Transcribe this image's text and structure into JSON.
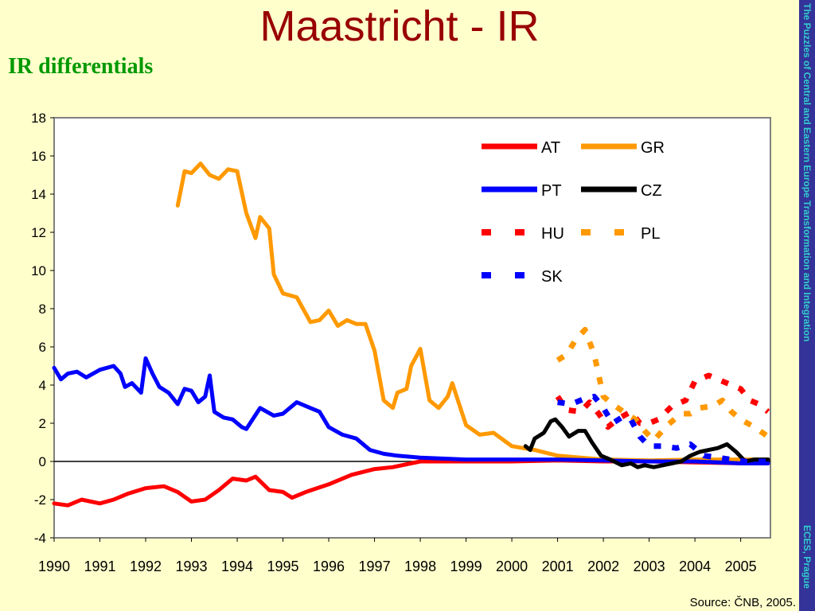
{
  "slide": {
    "title": "Maastricht - IR",
    "subtitle": "IR differentials",
    "side_text_top": "The Puzzles of Central and Eastern Europe Transformation and Integration",
    "side_text_bottom": "ECES, Prague",
    "source": "Source: ČNB, 2005."
  },
  "chart_data": {
    "type": "line",
    "title": "",
    "xlabel": "",
    "ylabel": "",
    "xlim": [
      1990,
      2005.65
    ],
    "ylim": [
      -4,
      18
    ],
    "x_ticks": [
      "1990",
      "1991",
      "1992",
      "1993",
      "1994",
      "1995",
      "1996",
      "1997",
      "1998",
      "1999",
      "2000",
      "2001",
      "2002",
      "2003",
      "2004",
      "2005"
    ],
    "y_ticks": [
      "18",
      "16",
      "14",
      "12",
      "10",
      "8",
      "6",
      "4",
      "2",
      "0",
      "-2",
      "-4"
    ],
    "legend_position": "top-right",
    "series": [
      {
        "name": "AT",
        "color": "#ff0000",
        "style": "solid",
        "points": [
          [
            1990,
            -2.2
          ],
          [
            1990.3,
            -2.3
          ],
          [
            1990.6,
            -2.0
          ],
          [
            1991,
            -2.2
          ],
          [
            1991.3,
            -2.0
          ],
          [
            1991.6,
            -1.7
          ],
          [
            1992,
            -1.4
          ],
          [
            1992.4,
            -1.3
          ],
          [
            1992.7,
            -1.6
          ],
          [
            1993,
            -2.1
          ],
          [
            1993.3,
            -2.0
          ],
          [
            1993.6,
            -1.5
          ],
          [
            1993.9,
            -0.9
          ],
          [
            1994.2,
            -1.0
          ],
          [
            1994.4,
            -0.8
          ],
          [
            1994.7,
            -1.5
          ],
          [
            1995,
            -1.6
          ],
          [
            1995.2,
            -1.9
          ],
          [
            1995.5,
            -1.6
          ],
          [
            1996,
            -1.2
          ],
          [
            1996.5,
            -0.7
          ],
          [
            1997,
            -0.4
          ],
          [
            1997.4,
            -0.3
          ],
          [
            1997.8,
            -0.1
          ],
          [
            1998,
            0.0
          ],
          [
            1998.5,
            0.0
          ],
          [
            1999,
            0.0
          ],
          [
            2000,
            0.0
          ],
          [
            2001,
            0.05
          ],
          [
            2002,
            0.0
          ],
          [
            2003,
            0.0
          ],
          [
            2004,
            -0.05
          ],
          [
            2005,
            -0.1
          ],
          [
            2005.6,
            -0.1
          ]
        ]
      },
      {
        "name": "GR",
        "color": "#ff9900",
        "style": "solid",
        "points": [
          [
            1992.7,
            13.4
          ],
          [
            1992.85,
            15.2
          ],
          [
            1993,
            15.1
          ],
          [
            1993.2,
            15.6
          ],
          [
            1993.4,
            15.0
          ],
          [
            1993.6,
            14.8
          ],
          [
            1993.8,
            15.3
          ],
          [
            1994,
            15.2
          ],
          [
            1994.2,
            13.0
          ],
          [
            1994.4,
            11.7
          ],
          [
            1994.5,
            12.8
          ],
          [
            1994.7,
            12.2
          ],
          [
            1994.8,
            9.8
          ],
          [
            1995,
            8.8
          ],
          [
            1995.3,
            8.6
          ],
          [
            1995.6,
            7.3
          ],
          [
            1995.8,
            7.4
          ],
          [
            1996,
            7.9
          ],
          [
            1996.2,
            7.1
          ],
          [
            1996.4,
            7.4
          ],
          [
            1996.6,
            7.2
          ],
          [
            1996.8,
            7.2
          ],
          [
            1997,
            5.8
          ],
          [
            1997.2,
            3.2
          ],
          [
            1997.4,
            2.8
          ],
          [
            1997.5,
            3.6
          ],
          [
            1997.7,
            3.8
          ],
          [
            1997.8,
            5.0
          ],
          [
            1998,
            5.9
          ],
          [
            1998.2,
            3.2
          ],
          [
            1998.4,
            2.8
          ],
          [
            1998.6,
            3.4
          ],
          [
            1998.7,
            4.1
          ],
          [
            1998.85,
            3.0
          ],
          [
            1999,
            1.9
          ],
          [
            1999.3,
            1.4
          ],
          [
            1999.6,
            1.5
          ],
          [
            2000,
            0.8
          ],
          [
            2000.5,
            0.6
          ],
          [
            2001,
            0.3
          ],
          [
            2001.5,
            0.2
          ],
          [
            2002,
            0.1
          ],
          [
            2003,
            0.05
          ],
          [
            2004,
            0.1
          ],
          [
            2005,
            0.1
          ],
          [
            2005.6,
            0.1
          ]
        ]
      },
      {
        "name": "PT",
        "color": "#0000ff",
        "style": "solid",
        "points": [
          [
            1990,
            4.9
          ],
          [
            1990.15,
            4.3
          ],
          [
            1990.3,
            4.6
          ],
          [
            1990.5,
            4.7
          ],
          [
            1990.7,
            4.4
          ],
          [
            1991,
            4.8
          ],
          [
            1991.3,
            5.0
          ],
          [
            1991.45,
            4.6
          ],
          [
            1991.55,
            3.9
          ],
          [
            1991.7,
            4.1
          ],
          [
            1991.9,
            3.6
          ],
          [
            1992,
            5.4
          ],
          [
            1992.15,
            4.6
          ],
          [
            1992.3,
            3.9
          ],
          [
            1992.5,
            3.6
          ],
          [
            1992.7,
            3.0
          ],
          [
            1992.85,
            3.8
          ],
          [
            1993,
            3.7
          ],
          [
            1993.15,
            3.1
          ],
          [
            1993.3,
            3.4
          ],
          [
            1993.4,
            4.5
          ],
          [
            1993.5,
            2.6
          ],
          [
            1993.7,
            2.3
          ],
          [
            1993.9,
            2.2
          ],
          [
            1994.1,
            1.8
          ],
          [
            1994.2,
            1.7
          ],
          [
            1994.5,
            2.8
          ],
          [
            1994.8,
            2.4
          ],
          [
            1995,
            2.5
          ],
          [
            1995.3,
            3.1
          ],
          [
            1995.6,
            2.8
          ],
          [
            1995.8,
            2.6
          ],
          [
            1996,
            1.8
          ],
          [
            1996.3,
            1.4
          ],
          [
            1996.6,
            1.2
          ],
          [
            1996.9,
            0.6
          ],
          [
            1997.2,
            0.4
          ],
          [
            1997.5,
            0.3
          ],
          [
            1998,
            0.2
          ],
          [
            1999,
            0.1
          ],
          [
            2000,
            0.1
          ],
          [
            2001,
            0.1
          ],
          [
            2002,
            0.05
          ],
          [
            2003,
            0.0
          ],
          [
            2004,
            0.0
          ],
          [
            2005,
            -0.1
          ],
          [
            2005.6,
            -0.1
          ]
        ]
      },
      {
        "name": "CZ",
        "color": "#000000",
        "style": "solid",
        "points": [
          [
            2000.3,
            0.8
          ],
          [
            2000.4,
            0.6
          ],
          [
            2000.5,
            1.2
          ],
          [
            2000.7,
            1.5
          ],
          [
            2000.85,
            2.1
          ],
          [
            2000.95,
            2.2
          ],
          [
            2001.1,
            1.8
          ],
          [
            2001.25,
            1.3
          ],
          [
            2001.45,
            1.6
          ],
          [
            2001.6,
            1.6
          ],
          [
            2001.75,
            1.0
          ],
          [
            2001.95,
            0.3
          ],
          [
            2002.15,
            0.1
          ],
          [
            2002.4,
            -0.2
          ],
          [
            2002.6,
            -0.1
          ],
          [
            2002.75,
            -0.3
          ],
          [
            2002.9,
            -0.2
          ],
          [
            2003.1,
            -0.3
          ],
          [
            2003.3,
            -0.2
          ],
          [
            2003.5,
            -0.1
          ],
          [
            2003.7,
            0.0
          ],
          [
            2003.9,
            0.3
          ],
          [
            2004.1,
            0.5
          ],
          [
            2004.3,
            0.6
          ],
          [
            2004.5,
            0.7
          ],
          [
            2004.7,
            0.9
          ],
          [
            2004.9,
            0.5
          ],
          [
            2005.1,
            0.0
          ],
          [
            2005.3,
            0.1
          ],
          [
            2005.6,
            0.1
          ]
        ]
      },
      {
        "name": "HU",
        "color": "#ff0000",
        "style": "dashed",
        "points": [
          [
            2001,
            3.4
          ],
          [
            2001.2,
            2.7
          ],
          [
            2001.5,
            2.6
          ],
          [
            2001.7,
            3.1
          ],
          [
            2001.9,
            2.5
          ],
          [
            2002.1,
            1.8
          ],
          [
            2002.3,
            2.2
          ],
          [
            2002.6,
            2.6
          ],
          [
            2002.8,
            2.0
          ],
          [
            2003.0,
            2.0
          ],
          [
            2003.2,
            2.2
          ],
          [
            2003.5,
            2.9
          ],
          [
            2003.8,
            3.2
          ],
          [
            2004.0,
            4.2
          ],
          [
            2004.3,
            4.5
          ],
          [
            2004.6,
            4.2
          ],
          [
            2004.8,
            4.0
          ],
          [
            2005.0,
            3.8
          ],
          [
            2005.2,
            3.2
          ],
          [
            2005.4,
            3.0
          ],
          [
            2005.6,
            2.6
          ]
        ]
      },
      {
        "name": "PL",
        "color": "#ff9900",
        "style": "dashed",
        "points": [
          [
            2001,
            5.3
          ],
          [
            2001.2,
            5.6
          ],
          [
            2001.4,
            6.4
          ],
          [
            2001.6,
            6.9
          ],
          [
            2001.8,
            5.6
          ],
          [
            2002.0,
            3.4
          ],
          [
            2002.2,
            3.0
          ],
          [
            2002.5,
            2.5
          ],
          [
            2002.7,
            2.2
          ],
          [
            2002.9,
            1.6
          ],
          [
            2003.1,
            1.1
          ],
          [
            2003.4,
            1.9
          ],
          [
            2003.7,
            2.5
          ],
          [
            2003.9,
            2.5
          ],
          [
            2004.1,
            2.8
          ],
          [
            2004.4,
            2.9
          ],
          [
            2004.6,
            3.2
          ],
          [
            2004.8,
            2.6
          ],
          [
            2005.0,
            2.2
          ],
          [
            2005.3,
            1.8
          ],
          [
            2005.6,
            1.3
          ]
        ]
      },
      {
        "name": "SK",
        "color": "#0000ff",
        "style": "dashed",
        "points": [
          [
            2001,
            3.1
          ],
          [
            2001.3,
            3.0
          ],
          [
            2001.6,
            3.3
          ],
          [
            2001.8,
            3.4
          ],
          [
            2002.0,
            2.8
          ],
          [
            2002.2,
            2.0
          ],
          [
            2002.4,
            2.3
          ],
          [
            2002.6,
            2.2
          ],
          [
            2002.8,
            1.3
          ],
          [
            2003.0,
            0.8
          ],
          [
            2003.3,
            0.8
          ],
          [
            2003.6,
            0.7
          ],
          [
            2003.9,
            0.9
          ],
          [
            2004.2,
            0.3
          ],
          [
            2004.5,
            0.2
          ],
          [
            2004.8,
            0.1
          ],
          [
            2005.1,
            0.0
          ],
          [
            2005.6,
            0.0
          ]
        ]
      }
    ]
  }
}
